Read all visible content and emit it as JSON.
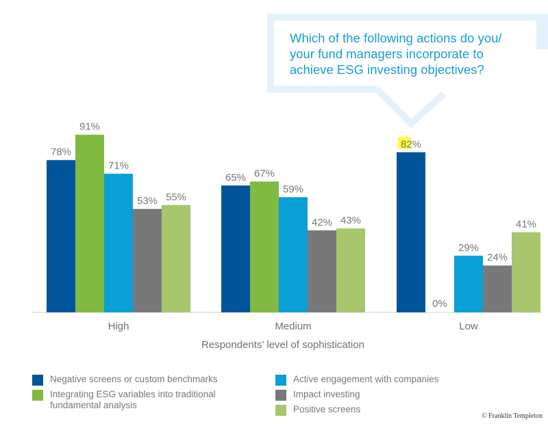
{
  "callout": {
    "lines": [
      "Which of the following actions do you/",
      "your fund managers incorporate to",
      "achieve ESG investing objectives?"
    ]
  },
  "chart_data": {
    "type": "bar",
    "title": "Which of the following actions do you/ your fund managers incorporate to achieve ESG investing objectives?",
    "xlabel": "Respondents’ level of sophistication",
    "ylabel": "",
    "ylim": [
      0,
      100
    ],
    "categories": [
      "High",
      "Medium",
      "Low"
    ],
    "series": [
      {
        "name": "Negative screens or custom benchmarks",
        "color": "#00559a",
        "values": [
          78,
          65,
          82
        ],
        "labels": [
          "78%",
          "65%",
          "82%"
        ]
      },
      {
        "name": "Integrating ESG variables into traditional fundamental analysis",
        "color": "#80ba42",
        "values": [
          91,
          67,
          0
        ],
        "labels": [
          "91%",
          "67%",
          "0%"
        ]
      },
      {
        "name": "Active engagement with companies",
        "color": "#0b9fd8",
        "values": [
          71,
          59,
          29
        ],
        "labels": [
          "71%",
          "59%",
          "29%"
        ]
      },
      {
        "name": "Impact investing",
        "color": "#787878",
        "values": [
          53,
          42,
          24
        ],
        "labels": [
          "53%",
          "42%",
          "24%"
        ]
      },
      {
        "name": "Positive screens",
        "color": "#a8c66c",
        "values": [
          55,
          43,
          41
        ],
        "labels": [
          "55%",
          "43%",
          "41%"
        ]
      }
    ],
    "highlight": {
      "category": "Low",
      "series": 0,
      "text": "82"
    },
    "legend_position": "bottom"
  },
  "legend": {
    "left": [
      {
        "line1": "Negative screens or custom benchmarks",
        "line2": ""
      },
      {
        "line1": "Integrating ESG variables into traditional",
        "line2": "fundamental analysis"
      }
    ],
    "right": [
      "Active engagement with companies",
      "Impact investing",
      "Positive screens"
    ]
  },
  "copyright": "© Franklin Templeton",
  "colors": {
    "callout_border": "#e3f1fb",
    "callout_text": "#1b9bd7",
    "axis": "#cccccc",
    "highlight": "#ffff33"
  }
}
